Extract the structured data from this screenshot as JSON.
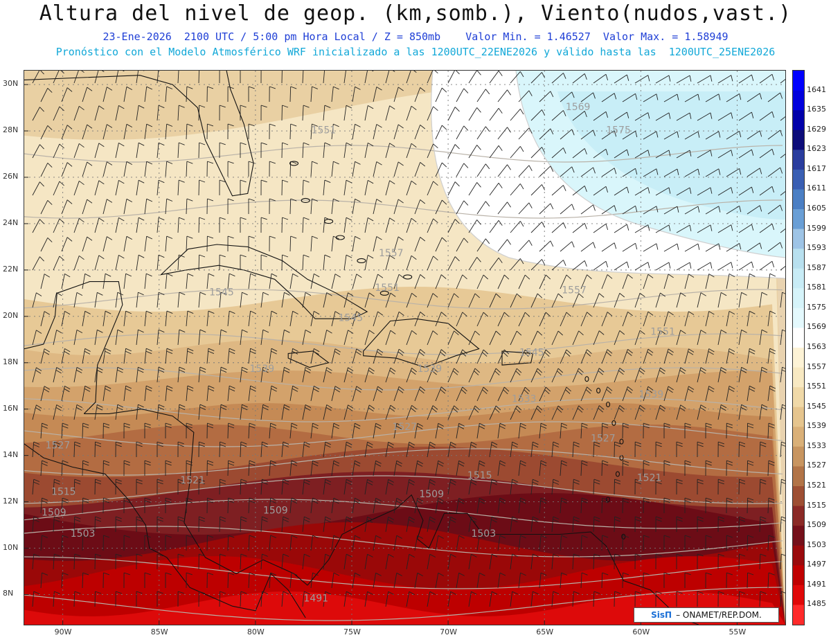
{
  "header": {
    "title": "Altura del nivel de geop. (km,somb.), Viento(nudos,vast.)",
    "line1": "23-Ene-2026  2100 UTC / 5:00 pm Hora Local / Z = 850mb    Valor Min. = 1.46527  Valor Max. = 1.58949",
    "line2": "Pronóstico con el Modelo Atmosférico WRF inicializado a las 1200UTC_22ENE2026 y válido hasta las  1200UTC_25ENE2026"
  },
  "map": {
    "lon_range": [
      -92,
      -52.5
    ],
    "lat_range": [
      6.7,
      30.6
    ],
    "lat_ticks": [
      "30N",
      "28N",
      "26N",
      "24N",
      "22N",
      "20N",
      "18N",
      "16N",
      "14N",
      "12N",
      "10N",
      "8N"
    ],
    "lat_values": [
      30,
      28,
      26,
      24,
      22,
      20,
      18,
      16,
      14,
      12,
      10,
      8
    ],
    "lon_ticks": [
      "90W",
      "85W",
      "80W",
      "75W",
      "70W",
      "65W",
      "60W",
      "55W"
    ],
    "lon_values": [
      -90,
      -85,
      -80,
      -75,
      -70,
      -65,
      -60,
      -55
    ],
    "contour_labels": [
      {
        "text": "1569",
        "lon": -63.9,
        "lat": 28.9
      },
      {
        "text": "1575",
        "lon": -61.8,
        "lat": 27.9
      },
      {
        "text": "1551",
        "lon": -77.1,
        "lat": 27.9
      },
      {
        "text": "1557",
        "lon": -73.6,
        "lat": 22.6
      },
      {
        "text": "1557",
        "lon": -64.1,
        "lat": 21.0
      },
      {
        "text": "1551",
        "lon": -73.8,
        "lat": 21.1
      },
      {
        "text": "1551",
        "lon": -59.5,
        "lat": 19.2
      },
      {
        "text": "1545",
        "lon": -82.4,
        "lat": 20.9
      },
      {
        "text": "1545",
        "lon": -75.7,
        "lat": 19.8
      },
      {
        "text": "1545",
        "lon": -66.3,
        "lat": 18.3
      },
      {
        "text": "1539",
        "lon": -80.3,
        "lat": 17.6
      },
      {
        "text": "1539",
        "lon": -71.6,
        "lat": 17.6
      },
      {
        "text": "1539",
        "lon": -60.1,
        "lat": 16.5
      },
      {
        "text": "1533",
        "lon": -66.7,
        "lat": 16.3
      },
      {
        "text": "1527",
        "lon": -72.9,
        "lat": 15.1
      },
      {
        "text": "1527",
        "lon": -62.6,
        "lat": 14.6
      },
      {
        "text": "1527",
        "lon": -90.9,
        "lat": 14.3
      },
      {
        "text": "1521",
        "lon": -83.9,
        "lat": 12.8
      },
      {
        "text": "1521",
        "lon": -60.2,
        "lat": 12.9
      },
      {
        "text": "1515",
        "lon": -90.6,
        "lat": 12.3
      },
      {
        "text": "1515",
        "lon": -69.0,
        "lat": 13.0
      },
      {
        "text": "1509",
        "lon": -91.1,
        "lat": 11.4
      },
      {
        "text": "1509",
        "lon": -79.6,
        "lat": 11.5
      },
      {
        "text": "1509",
        "lon": -71.5,
        "lat": 12.2
      },
      {
        "text": "1503",
        "lon": -89.6,
        "lat": 10.5
      },
      {
        "text": "1503",
        "lon": -68.8,
        "lat": 10.5
      },
      {
        "text": "1491",
        "lon": -77.5,
        "lat": 7.7
      }
    ]
  },
  "legend": {
    "labels": [
      "1641",
      "1635",
      "1629",
      "1623",
      "1617",
      "1611",
      "1605",
      "1599",
      "1593",
      "1587",
      "1581",
      "1575",
      "1569",
      "1563",
      "1557",
      "1551",
      "1545",
      "1539",
      "1533",
      "1527",
      "1521",
      "1515",
      "1509",
      "1503",
      "1497",
      "1491",
      "1485"
    ],
    "colors": [
      "#0000ff",
      "#0000dd",
      "#0000aa",
      "#0d0d7a",
      "#2a3d9e",
      "#3a5fb3",
      "#4b7fc4",
      "#6a9fd6",
      "#9ec4e6",
      "#b8e0ef",
      "#c8ecf6",
      "#d6f4fa",
      "#e4f9fd",
      "#ffffff",
      "#fdf3d6",
      "#f8e9c2",
      "#f0d9a8",
      "#e6c58e",
      "#dab078",
      "#c89560",
      "#b27447",
      "#9e4f33",
      "#8b2a26",
      "#75101a",
      "#9a0a0c",
      "#c00000",
      "#e00808",
      "#ff2a2a"
    ]
  },
  "credit": {
    "brand": "SisΠ",
    "org": "– ONAMET/REP.DOM."
  }
}
